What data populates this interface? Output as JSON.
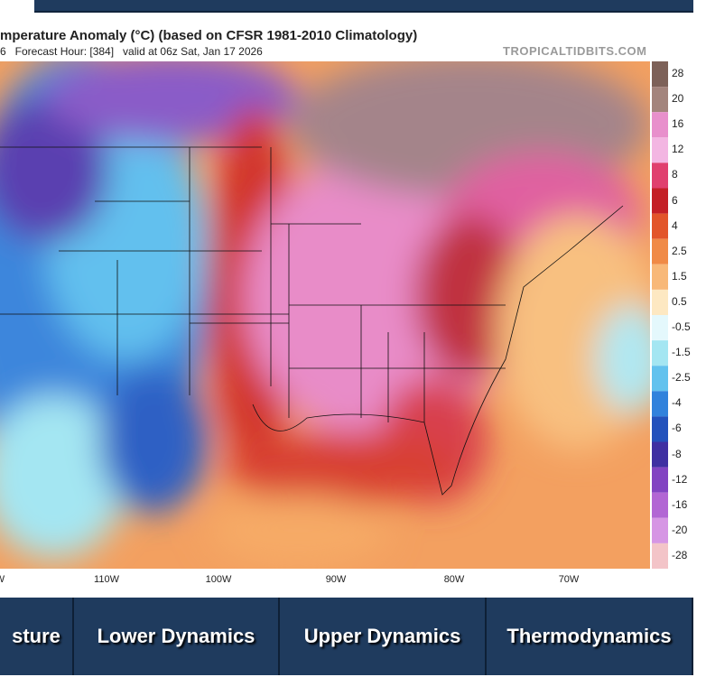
{
  "header": {
    "title": "mperature Anomaly (°C) (based on CFSR 1981-2010 Climatology)",
    "subtitle": "6   Forecast Hour: [384]   valid at 06z Sat, Jan 17 2026",
    "watermark": "TROPICALTIDBITS.COM"
  },
  "colorbar": [
    {
      "label": "28",
      "color": "#7d6158"
    },
    {
      "label": "20",
      "color": "#a3847c"
    },
    {
      "label": "16",
      "color": "#e890cc"
    },
    {
      "label": "12",
      "color": "#f3b6e2"
    },
    {
      "label": "8",
      "color": "#e0406e"
    },
    {
      "label": "6",
      "color": "#c42026"
    },
    {
      "label": "4",
      "color": "#e2552a"
    },
    {
      "label": "2.5",
      "color": "#f08a46"
    },
    {
      "label": "1.5",
      "color": "#f8b878"
    },
    {
      "label": "0.5",
      "color": "#fde8c2"
    },
    {
      "label": "-0.5",
      "color": "#e4f8fc"
    },
    {
      "label": "-1.5",
      "color": "#a4e6f2"
    },
    {
      "label": "-2.5",
      "color": "#62c2ee"
    },
    {
      "label": "-4",
      "color": "#3182dc"
    },
    {
      "label": "-6",
      "color": "#2352bc"
    },
    {
      "label": "-8",
      "color": "#3f30a2"
    },
    {
      "label": "-12",
      "color": "#8244c2"
    },
    {
      "label": "-16",
      "color": "#b266d4"
    },
    {
      "label": "-20",
      "color": "#d696e4"
    },
    {
      "label": "-28",
      "color": "#f3c4c8"
    }
  ],
  "longitudes": [
    "W",
    "110W",
    "100W",
    "90W",
    "80W",
    "70W"
  ],
  "tabs": [
    "sture",
    "Lower Dynamics",
    "Upper Dynamics",
    "Thermodynamics"
  ]
}
